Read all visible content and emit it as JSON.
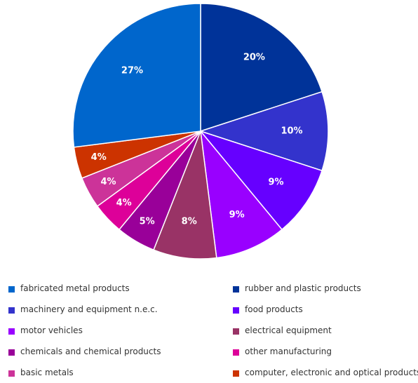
{
  "chart_data": {
    "type": "pie",
    "slices": [
      {
        "label": "rubber and plastic products",
        "value": 20,
        "display": "20%",
        "color": "#003399"
      },
      {
        "label": "machinery and equipment n.e.c.",
        "value": 10,
        "display": "10%",
        "color": "#3333cc"
      },
      {
        "label": "food products",
        "value": 9,
        "display": "9%",
        "color": "#6600ff"
      },
      {
        "label": "motor vehicles",
        "value": 9,
        "display": "9%",
        "color": "#9900ff"
      },
      {
        "label": "electrical equipment",
        "value": 8,
        "display": "8%",
        "color": "#993366"
      },
      {
        "label": "chemicals and chemical products",
        "value": 5,
        "display": "5%",
        "color": "#990099"
      },
      {
        "label": "other manufacturing",
        "value": 4,
        "display": "4%",
        "color": "#dd0099"
      },
      {
        "label": "basic metals",
        "value": 4,
        "display": "4%",
        "color": "#cc3399"
      },
      {
        "label": "computer, electronic and optical products",
        "value": 4,
        "display": "4%",
        "color": "#cc3300"
      },
      {
        "label": "fabricated metal products",
        "value": 27,
        "display": "27%",
        "color": "#0066cc"
      }
    ],
    "legend_order": [
      "fabricated metal products",
      "rubber and plastic products",
      "machinery and equipment n.e.c.",
      "food products",
      "motor vehicles",
      "electrical equipment",
      "chemicals and chemical products",
      "other manufacturing",
      "basic metals",
      "computer, electronic and optical products"
    ],
    "legend_placement": "bottom"
  }
}
